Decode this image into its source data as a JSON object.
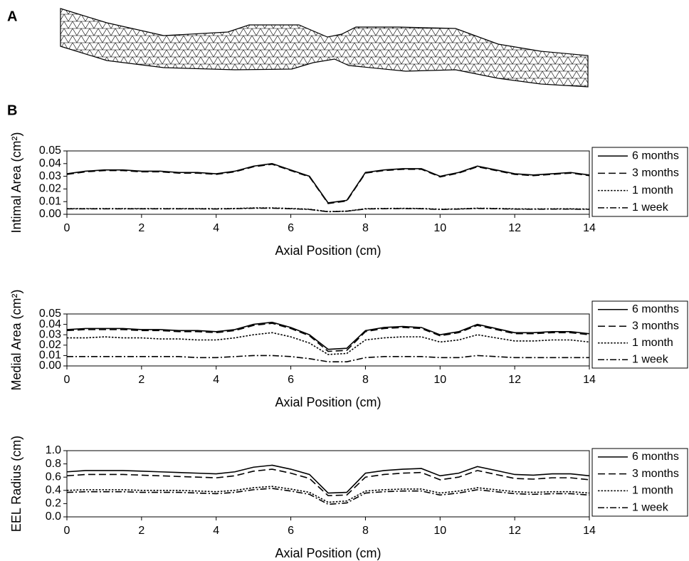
{
  "panel_labels": [
    "A",
    "B"
  ],
  "chart_data": [
    {
      "type": "line",
      "ylabel": "Intimal Area (cm²)",
      "xlabel": "Axial Position (cm)",
      "x": [
        0,
        0.5,
        1,
        1.5,
        2,
        2.5,
        3,
        3.5,
        4,
        4.5,
        5,
        5.5,
        6,
        6.5,
        7,
        7.5,
        8,
        8.5,
        9,
        9.5,
        10,
        10.5,
        11,
        11.5,
        12,
        12.5,
        13,
        13.5,
        14
      ],
      "xlim": [
        0,
        14
      ],
      "xticks": [
        0,
        2,
        4,
        6,
        8,
        10,
        12,
        14
      ],
      "ylim": [
        0,
        0.05
      ],
      "yticks": [
        {
          "value": 0,
          "label": "0.00"
        },
        {
          "value": 0.01,
          "label": "0.01"
        },
        {
          "value": 0.02,
          "label": "0.02"
        },
        {
          "value": 0.03,
          "label": "0.03"
        },
        {
          "value": 0.04,
          "label": "0.04"
        },
        {
          "value": 0.05,
          "label": "0.05"
        }
      ],
      "legend": "outside right",
      "series": [
        {
          "name": "6 months",
          "color": "#000000",
          "dash": "solid",
          "values": [
            0.032,
            0.034,
            0.035,
            0.035,
            0.034,
            0.034,
            0.033,
            0.033,
            0.032,
            0.034,
            0.038,
            0.04,
            0.035,
            0.03,
            0.009,
            0.011,
            0.033,
            0.035,
            0.036,
            0.036,
            0.03,
            0.033,
            0.038,
            0.035,
            0.032,
            0.031,
            0.032,
            0.033,
            0.031
          ]
        },
        {
          "name": "3 months",
          "color": "#000000",
          "dash": "long",
          "values": [
            0.0315,
            0.0335,
            0.0345,
            0.0345,
            0.0335,
            0.0335,
            0.0325,
            0.0325,
            0.0315,
            0.0335,
            0.0375,
            0.0395,
            0.0345,
            0.0295,
            0.0085,
            0.0105,
            0.0325,
            0.0345,
            0.0355,
            0.0355,
            0.0295,
            0.0325,
            0.0375,
            0.0345,
            0.0315,
            0.0305,
            0.0315,
            0.0325,
            0.0305
          ]
        },
        {
          "name": "1 month",
          "color": "#000000",
          "dash": "dot",
          "values": [
            0.0045,
            0.0045,
            0.0045,
            0.0045,
            0.0045,
            0.0045,
            0.0045,
            0.0045,
            0.0044,
            0.0046,
            0.005,
            0.005,
            0.0046,
            0.004,
            0.0021,
            0.0025,
            0.0044,
            0.0046,
            0.0047,
            0.0046,
            0.004,
            0.0043,
            0.0048,
            0.0046,
            0.0043,
            0.0042,
            0.0043,
            0.0043,
            0.0041
          ]
        },
        {
          "name": "1 week",
          "color": "#000000",
          "dash": "dashdot",
          "values": [
            0.0043,
            0.0043,
            0.0043,
            0.0043,
            0.0043,
            0.0043,
            0.0043,
            0.0043,
            0.0042,
            0.0044,
            0.0048,
            0.0048,
            0.0044,
            0.0038,
            0.002,
            0.0024,
            0.0042,
            0.0044,
            0.0045,
            0.0044,
            0.0038,
            0.0041,
            0.0046,
            0.0044,
            0.0041,
            0.004,
            0.0041,
            0.0041,
            0.0039
          ]
        }
      ]
    },
    {
      "type": "line",
      "ylabel": "Medial Area (cm²)",
      "xlabel": "Axial Position (cm)",
      "x": [
        0,
        0.5,
        1,
        1.5,
        2,
        2.5,
        3,
        3.5,
        4,
        4.5,
        5,
        5.5,
        6,
        6.5,
        7,
        7.5,
        8,
        8.5,
        9,
        9.5,
        10,
        10.5,
        11,
        11.5,
        12,
        12.5,
        13,
        13.5,
        14
      ],
      "xlim": [
        0,
        14
      ],
      "xticks": [
        0,
        2,
        4,
        6,
        8,
        10,
        12,
        14
      ],
      "ylim": [
        0,
        0.05
      ],
      "yticks": [
        {
          "value": 0,
          "label": "0.00"
        },
        {
          "value": 0.01,
          "label": "0.01"
        },
        {
          "value": 0.02,
          "label": "0.02"
        },
        {
          "value": 0.03,
          "label": "0.03"
        },
        {
          "value": 0.04,
          "label": "0.04"
        },
        {
          "value": 0.05,
          "label": "0.05"
        }
      ],
      "legend": "outside right",
      "series": [
        {
          "name": "6 months",
          "color": "#000000",
          "dash": "solid",
          "values": [
            0.035,
            0.036,
            0.036,
            0.036,
            0.035,
            0.035,
            0.034,
            0.034,
            0.033,
            0.035,
            0.04,
            0.042,
            0.037,
            0.03,
            0.016,
            0.017,
            0.034,
            0.037,
            0.038,
            0.037,
            0.03,
            0.033,
            0.04,
            0.036,
            0.032,
            0.032,
            0.033,
            0.033,
            0.031
          ]
        },
        {
          "name": "3 months",
          "color": "#000000",
          "dash": "long",
          "values": [
            0.034,
            0.035,
            0.035,
            0.035,
            0.034,
            0.034,
            0.033,
            0.033,
            0.032,
            0.034,
            0.039,
            0.041,
            0.036,
            0.029,
            0.014,
            0.015,
            0.033,
            0.036,
            0.037,
            0.036,
            0.029,
            0.032,
            0.039,
            0.035,
            0.031,
            0.031,
            0.032,
            0.032,
            0.03
          ]
        },
        {
          "name": "1 month",
          "color": "#000000",
          "dash": "dot",
          "values": [
            0.027,
            0.027,
            0.028,
            0.027,
            0.027,
            0.026,
            0.026,
            0.025,
            0.025,
            0.027,
            0.03,
            0.032,
            0.028,
            0.022,
            0.011,
            0.012,
            0.025,
            0.027,
            0.028,
            0.028,
            0.023,
            0.025,
            0.03,
            0.027,
            0.024,
            0.024,
            0.025,
            0.025,
            0.023
          ]
        },
        {
          "name": "1 week",
          "color": "#000000",
          "dash": "dashdot",
          "values": [
            0.009,
            0.009,
            0.009,
            0.009,
            0.009,
            0.009,
            0.009,
            0.008,
            0.008,
            0.009,
            0.01,
            0.01,
            0.009,
            0.007,
            0.004,
            0.004,
            0.008,
            0.009,
            0.009,
            0.009,
            0.008,
            0.008,
            0.01,
            0.009,
            0.008,
            0.008,
            0.008,
            0.008,
            0.008
          ]
        }
      ]
    },
    {
      "type": "line",
      "ylabel": "EEL Radius (cm)",
      "xlabel": "Axial Position (cm)",
      "x": [
        0,
        0.5,
        1,
        1.5,
        2,
        2.5,
        3,
        3.5,
        4,
        4.5,
        5,
        5.5,
        6,
        6.5,
        7,
        7.5,
        8,
        8.5,
        9,
        9.5,
        10,
        10.5,
        11,
        11.5,
        12,
        12.5,
        13,
        13.5,
        14
      ],
      "xlim": [
        0,
        14
      ],
      "xticks": [
        0,
        2,
        4,
        6,
        8,
        10,
        12,
        14
      ],
      "ylim": [
        0,
        1
      ],
      "yticks": [
        {
          "value": 0,
          "label": "0.0"
        },
        {
          "value": 0.2,
          "label": "0.2"
        },
        {
          "value": 0.4,
          "label": "0.4"
        },
        {
          "value": 0.6,
          "label": "0.6"
        },
        {
          "value": 0.8,
          "label": "0.8"
        },
        {
          "value": 1,
          "label": "1.0"
        }
      ],
      "legend": "outside right",
      "series": [
        {
          "name": "6 months",
          "color": "#000000",
          "dash": "solid",
          "values": [
            0.68,
            0.7,
            0.7,
            0.7,
            0.69,
            0.68,
            0.67,
            0.66,
            0.65,
            0.68,
            0.75,
            0.78,
            0.72,
            0.64,
            0.36,
            0.37,
            0.66,
            0.7,
            0.72,
            0.73,
            0.62,
            0.66,
            0.76,
            0.7,
            0.64,
            0.63,
            0.65,
            0.65,
            0.62
          ]
        },
        {
          "name": "3 months",
          "color": "#000000",
          "dash": "long",
          "values": [
            0.62,
            0.64,
            0.64,
            0.64,
            0.63,
            0.62,
            0.61,
            0.6,
            0.59,
            0.62,
            0.69,
            0.72,
            0.66,
            0.58,
            0.32,
            0.33,
            0.6,
            0.64,
            0.66,
            0.67,
            0.56,
            0.6,
            0.7,
            0.64,
            0.58,
            0.57,
            0.59,
            0.59,
            0.56
          ]
        },
        {
          "name": "1 month",
          "color": "#000000",
          "dash": "dot",
          "values": [
            0.4,
            0.41,
            0.41,
            0.41,
            0.4,
            0.4,
            0.4,
            0.39,
            0.38,
            0.4,
            0.44,
            0.46,
            0.42,
            0.37,
            0.22,
            0.24,
            0.39,
            0.41,
            0.42,
            0.42,
            0.36,
            0.39,
            0.44,
            0.41,
            0.38,
            0.37,
            0.38,
            0.38,
            0.36
          ]
        },
        {
          "name": "1 week",
          "color": "#000000",
          "dash": "dashdot",
          "values": [
            0.37,
            0.38,
            0.38,
            0.38,
            0.37,
            0.37,
            0.37,
            0.36,
            0.35,
            0.37,
            0.41,
            0.43,
            0.39,
            0.34,
            0.19,
            0.21,
            0.36,
            0.38,
            0.39,
            0.39,
            0.33,
            0.36,
            0.41,
            0.38,
            0.35,
            0.34,
            0.35,
            0.35,
            0.33
          ]
        }
      ]
    }
  ]
}
